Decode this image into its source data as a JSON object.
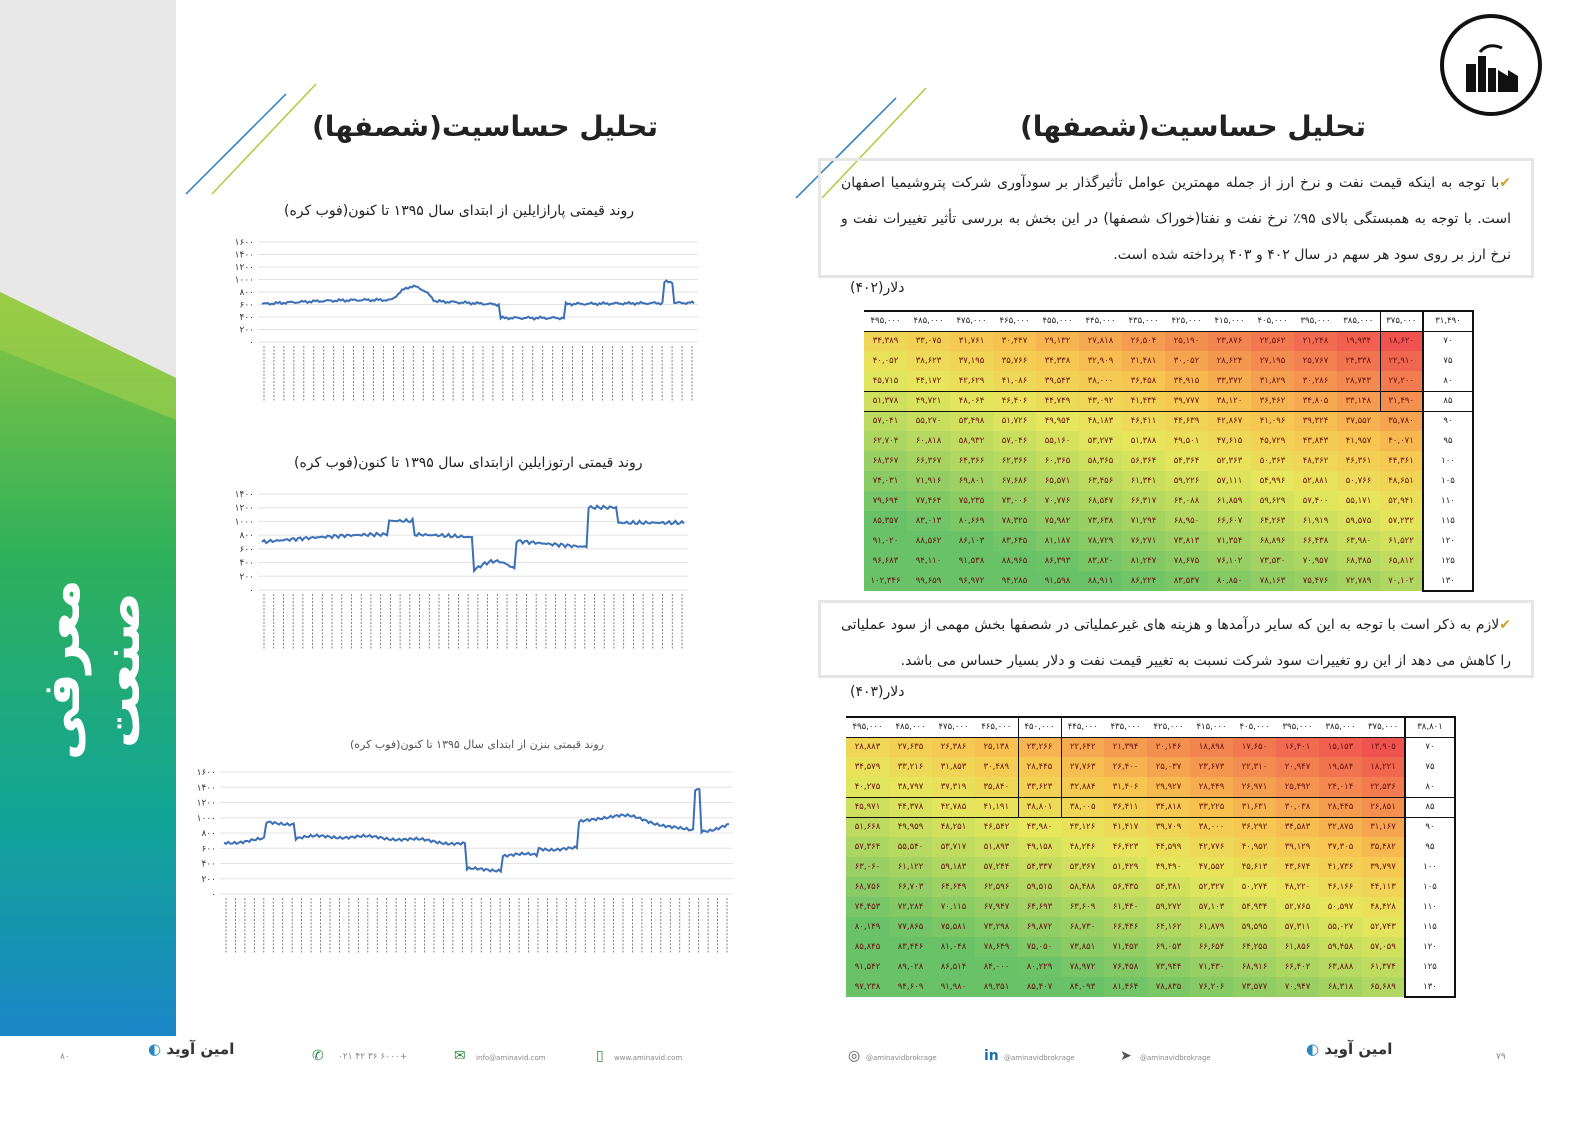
{
  "ribbon": {
    "title": "معرفی صنعت"
  },
  "left_page": {
    "heading": "تحلیل حساسیت(شصفها)",
    "charts": [
      {
        "title": "روند قیمتی پارازایلین از ابتدای سال ۱۳۹۵ تا کنون(فوب کره)",
        "yticks": [
          "۱۶۰۰",
          "۱۴۰۰",
          "۱۲۰۰",
          "۱۰۰۰",
          "۸۰۰",
          "۶۰۰",
          "۴۰۰",
          "۲۰۰",
          "۰"
        ]
      },
      {
        "title": "روند قیمتی ارتوزایلین ازابتدای سال ۱۳۹۵ تا کنون(فوب کره)",
        "yticks": [
          "۱۴۰۰",
          "۱۲۰۰",
          "۱۰۰۰",
          "۸۰۰",
          "۶۰۰",
          "۴۰۰",
          "۲۰۰",
          "۰"
        ]
      },
      {
        "title": "روند قیمتی بنزن از ابتدای سال ۱۳۹۵ تا کنون(فوب کره)",
        "yticks": [
          "۱۶۰۰",
          "۱۴۰۰",
          "۱۲۰۰",
          "۱۰۰۰",
          "۸۰۰",
          "۶۰۰",
          "۴۰۰",
          "۲۰۰",
          "۰"
        ]
      }
    ],
    "footer": {
      "phone": "۰۲۱ ۴۲ ۳۶ ۶۰۰۰+",
      "email": "info@aminavid.com",
      "web": "www.aminavid.com",
      "brand": "امین آوید",
      "page_number": "۸۰"
    }
  },
  "right_page": {
    "heading": "تحلیل حساسیت(شصفها)",
    "para1": "با توجه به اینکه قیمت نفت و نرخ ارز از جمله مهمترین عوامل تأثیرگذار بر سودآوری شرکت پتروشیمیا اصفهان است. با توجه به همبستگی بالای ۹۵٪ نرخ نفت و نفتا(خوراک شصفها) در این بخش به بررسی تأثیر تغییرات نفت و نرخ ارز بر روی سود هر سهم در سال ۴۰۲ و ۴۰۳ پرداخته شده است.",
    "para2": "لازم به ذکر است با توجه به این که سایر درآمدها و هزینه های غیرعملیاتی در شصفها بخش مهمی از سود عملیاتی را کاهش می دهد از این رو تغییرات سود شرکت نسبت به تغییر قیمت نفت و دلار بسیار حساس می باشد.",
    "table1_label": "دلار(۴۰۲)",
    "table2_label": "دلار(۴۰۳)",
    "footer": {
      "instagram": "@aminavidbrokrage",
      "linkedin": "@aminavidbrokrage",
      "telegram": "@aminavidbrokrage",
      "brand": "امین آوید",
      "page_number": "۷۹"
    }
  },
  "table1": {
    "corner": "۳۱,۴۹۰",
    "cols": [
      "۳۷۵,۰۰۰",
      "۳۸۵,۰۰۰",
      "۳۹۵,۰۰۰",
      "۴۰۵,۰۰۰",
      "۴۱۵,۰۰۰",
      "۴۲۵,۰۰۰",
      "۴۳۵,۰۰۰",
      "۴۴۵,۰۰۰",
      "۴۵۵,۰۰۰",
      "۴۶۵,۰۰۰",
      "۴۷۵,۰۰۰",
      "۴۸۵,۰۰۰",
      "۴۹۵,۰۰۰"
    ],
    "rows": [
      {
        "h": "۷۰",
        "v": [
          "۱۸,۶۲۰",
          "۱۹,۹۳۴",
          "۲۱,۲۴۸",
          "۲۲,۵۶۲",
          "۲۳,۸۷۶",
          "۲۵,۱۹۰",
          "۲۶,۵۰۴",
          "۲۷,۸۱۸",
          "۲۹,۱۳۲",
          "۳۰,۴۴۷",
          "۳۱,۷۶۱",
          "۳۳,۰۷۵",
          "۳۴,۳۸۹"
        ]
      },
      {
        "h": "۷۵",
        "v": [
          "۲۲,۹۱۰",
          "۲۴,۳۳۸",
          "۲۵,۷۶۷",
          "۲۷,۱۹۵",
          "۲۸,۶۲۴",
          "۳۰,۰۵۲",
          "۳۱,۴۸۱",
          "۳۲,۹۰۹",
          "۳۴,۳۳۸",
          "۳۵,۷۶۶",
          "۳۷,۱۹۵",
          "۳۸,۶۲۳",
          "۴۰,۰۵۲"
        ]
      },
      {
        "h": "۸۰",
        "v": [
          "۲۷,۲۰۰",
          "۲۸,۷۴۳",
          "۳۰,۲۸۶",
          "۳۱,۸۲۹",
          "۳۳,۳۷۲",
          "۳۴,۹۱۵",
          "۳۶,۴۵۸",
          "۳۸,۰۰۰",
          "۳۹,۵۴۳",
          "۴۱,۰۸۶",
          "۴۲,۶۲۹",
          "۴۴,۱۷۲",
          "۴۵,۷۱۵"
        ]
      },
      {
        "h": "۸۵",
        "v": [
          "۳۱,۴۹۰",
          "۳۳,۱۴۸",
          "۳۴,۸۰۵",
          "۳۶,۴۶۲",
          "۳۸,۱۲۰",
          "۳۹,۷۷۷",
          "۴۱,۴۳۴",
          "۴۳,۰۹۲",
          "۴۴,۷۴۹",
          "۴۶,۴۰۶",
          "۴۸,۰۶۴",
          "۴۹,۷۲۱",
          "۵۱,۳۷۸"
        ]
      },
      {
        "h": "۹۰",
        "v": [
          "۳۵,۷۸۰",
          "۳۷,۵۵۲",
          "۳۹,۳۲۴",
          "۴۱,۰۹۶",
          "۴۲,۸۶۷",
          "۴۴,۶۳۹",
          "۴۶,۴۱۱",
          "۴۸,۱۸۳",
          "۴۹,۹۵۴",
          "۵۱,۷۲۶",
          "۵۳,۴۹۸",
          "۵۵,۲۷۰",
          "۵۷,۰۴۱"
        ]
      },
      {
        "h": "۹۵",
        "v": [
          "۴۰,۰۷۱",
          "۴۱,۹۵۷",
          "۴۳,۸۴۳",
          "۴۵,۷۲۹",
          "۴۷,۶۱۵",
          "۴۹,۵۰۱",
          "۵۱,۳۸۸",
          "۵۳,۲۷۴",
          "۵۵,۱۶۰",
          "۵۷,۰۴۶",
          "۵۸,۹۳۲",
          "۶۰,۸۱۸",
          "۶۲,۷۰۴"
        ]
      },
      {
        "h": "۱۰۰",
        "v": [
          "۴۴,۳۶۱",
          "۴۶,۳۶۱",
          "۴۸,۳۶۲",
          "۵۰,۳۶۳",
          "۵۲,۳۶۳",
          "۵۴,۳۶۴",
          "۵۶,۳۶۴",
          "۵۸,۳۶۵",
          "۶۰,۳۶۵",
          "۶۲,۳۶۶",
          "۶۴,۳۶۶",
          "۶۶,۳۶۷",
          "۶۸,۳۶۷"
        ]
      },
      {
        "h": "۱۰۵",
        "v": [
          "۴۸,۶۵۱",
          "۵۰,۷۶۶",
          "۵۲,۸۸۱",
          "۵۴,۹۹۶",
          "۵۷,۱۱۱",
          "۵۹,۲۲۶",
          "۶۱,۳۴۱",
          "۶۳,۴۵۶",
          "۶۵,۵۷۱",
          "۶۷,۶۸۶",
          "۶۹,۸۰۱",
          "۷۱,۹۱۶",
          "۷۴,۰۳۱"
        ]
      },
      {
        "h": "۱۱۰",
        "v": [
          "۵۲,۹۴۱",
          "۵۵,۱۷۱",
          "۵۷,۴۰۰",
          "۵۹,۶۲۹",
          "۶۱,۸۵۹",
          "۶۴,۰۸۸",
          "۶۶,۳۱۷",
          "۶۸,۵۴۷",
          "۷۰,۷۷۶",
          "۷۳,۰۰۶",
          "۷۵,۲۳۵",
          "۷۷,۴۶۴",
          "۷۹,۶۹۴"
        ]
      },
      {
        "h": "۱۱۵",
        "v": [
          "۵۷,۲۳۲",
          "۵۹,۵۷۵",
          "۶۱,۹۱۹",
          "۶۴,۲۶۳",
          "۶۶,۶۰۷",
          "۶۸,۹۵۰",
          "۷۱,۲۹۴",
          "۷۳,۶۳۸",
          "۷۵,۹۸۲",
          "۷۸,۳۲۵",
          "۸۰,۶۶۹",
          "۸۳,۰۱۳",
          "۸۵,۳۵۷"
        ]
      },
      {
        "h": "۱۲۰",
        "v": [
          "۶۱,۵۲۲",
          "۶۳,۹۸۰",
          "۶۶,۴۳۸",
          "۶۸,۸۹۶",
          "۷۱,۳۵۴",
          "۷۳,۸۱۳",
          "۷۶,۲۷۱",
          "۷۸,۷۲۹",
          "۸۱,۱۸۷",
          "۸۳,۶۴۵",
          "۸۶,۱۰۳",
          "۸۸,۵۶۲",
          "۹۱,۰۲۰"
        ]
      },
      {
        "h": "۱۲۵",
        "v": [
          "۶۵,۸۱۲",
          "۶۸,۳۸۵",
          "۷۰,۹۵۷",
          "۷۳,۵۳۰",
          "۷۶,۱۰۲",
          "۷۸,۶۷۵",
          "۸۱,۲۴۷",
          "۸۳,۸۲۰",
          "۸۶,۳۹۳",
          "۸۸,۹۶۵",
          "۹۱,۵۳۸",
          "۹۴,۱۱۰",
          "۹۶,۶۸۳"
        ]
      },
      {
        "h": "۱۳۰",
        "v": [
          "۷۰,۱۰۲",
          "۷۲,۷۸۹",
          "۷۵,۴۷۶",
          "۷۸,۱۶۳",
          "۸۰,۸۵۰",
          "۸۳,۵۳۷",
          "۸۶,۲۲۴",
          "۸۸,۹۱۱",
          "۹۱,۵۹۸",
          "۹۴,۲۸۵",
          "۹۶,۹۷۲",
          "۹۹,۶۵۹",
          "۱۰۲,۳۴۶"
        ]
      }
    ]
  },
  "table2": {
    "corner": "۳۸,۸۰۱",
    "cols": [
      "۳۷۵,۰۰۰",
      "۳۸۵,۰۰۰",
      "۳۹۵,۰۰۰",
      "۴۰۵,۰۰۰",
      "۴۱۵,۰۰۰",
      "۴۲۵,۰۰۰",
      "۴۳۵,۰۰۰",
      "۴۴۵,۰۰۰",
      "۴۵۰,۰۰۰",
      "۴۶۵,۰۰۰",
      "۴۷۵,۰۰۰",
      "۴۸۵,۰۰۰",
      "۴۹۵,۰۰۰"
    ],
    "rows": [
      {
        "h": "۷۰",
        "v": [
          "۱۳,۹۰۵",
          "۱۵,۱۵۳",
          "۱۶,۴۰۱",
          "۱۷,۶۵۰",
          "۱۸,۸۹۸",
          "۲۰,۱۴۶",
          "۲۱,۳۹۴",
          "۲۲,۶۴۲",
          "۲۳,۲۶۶",
          "۲۵,۱۳۸",
          "۲۶,۳۸۶",
          "۲۷,۶۳۵",
          "۲۸,۸۸۳"
        ]
      },
      {
        "h": "۷۵",
        "v": [
          "۱۸,۲۲۱",
          "۱۹,۵۸۴",
          "۲۰,۹۴۷",
          "۲۲,۳۱۰",
          "۲۳,۶۷۳",
          "۲۵,۰۳۷",
          "۲۶,۴۰۰",
          "۲۷,۷۶۳",
          "۲۸,۴۴۵",
          "۳۰,۴۸۹",
          "۳۱,۸۵۳",
          "۳۳,۲۱۶",
          "۳۴,۵۷۹"
        ]
      },
      {
        "h": "۸۰",
        "v": [
          "۲۲,۵۳۶",
          "۲۴,۰۱۴",
          "۲۵,۴۹۲",
          "۲۶,۹۷۱",
          "۲۸,۴۴۹",
          "۲۹,۹۲۷",
          "۳۱,۴۰۶",
          "۳۲,۸۸۴",
          "۳۳,۶۲۳",
          "۳۵,۸۴۰",
          "۳۷,۳۱۹",
          "۳۸,۷۹۷",
          "۴۰,۲۷۵"
        ]
      },
      {
        "h": "۸۵",
        "v": [
          "۲۶,۸۵۱",
          "۲۸,۴۴۵",
          "۳۰,۰۳۸",
          "۳۱,۶۳۱",
          "۳۳,۲۲۵",
          "۳۴,۸۱۸",
          "۳۶,۴۱۱",
          "۳۸,۰۰۵",
          "۳۸,۸۰۱",
          "۴۱,۱۹۱",
          "۴۲,۷۸۵",
          "۴۴,۳۷۸",
          "۴۵,۹۷۱"
        ]
      },
      {
        "h": "۹۰",
        "v": [
          "۳۱,۱۶۷",
          "۳۲,۸۷۵",
          "۳۴,۵۸۳",
          "۳۶,۲۹۲",
          "۳۸,۰۰۰",
          "۳۹,۷۰۹",
          "۴۱,۴۱۷",
          "۴۳,۱۲۶",
          "۴۳,۹۸۰",
          "۴۶,۵۴۲",
          "۴۸,۲۵۱",
          "۴۹,۹۵۹",
          "۵۱,۶۶۸"
        ]
      },
      {
        "h": "۹۵",
        "v": [
          "۳۵,۴۸۲",
          "۳۷,۳۰۵",
          "۳۹,۱۲۹",
          "۴۰,۹۵۲",
          "۴۲,۷۷۶",
          "۴۴,۵۹۹",
          "۴۶,۴۲۳",
          "۴۸,۲۴۶",
          "۴۹,۱۵۸",
          "۵۱,۸۹۳",
          "۵۳,۷۱۷",
          "۵۵,۵۴۰",
          "۵۷,۳۶۴"
        ]
      },
      {
        "h": "۱۰۰",
        "v": [
          "۳۹,۷۹۷",
          "۴۱,۷۳۶",
          "۴۳,۶۷۴",
          "۴۵,۶۱۳",
          "۴۷,۵۵۲",
          "۴۹,۴۹۰",
          "۵۱,۴۲۹",
          "۵۳,۳۶۷",
          "۵۴,۳۳۷",
          "۵۷,۲۴۴",
          "۵۹,۱۸۳",
          "۶۱,۱۲۲",
          "۶۳,۰۶۰"
        ]
      },
      {
        "h": "۱۰۵",
        "v": [
          "۴۴,۱۱۳",
          "۴۶,۱۶۶",
          "۴۸,۲۲۰",
          "۵۰,۲۷۴",
          "۵۲,۳۲۷",
          "۵۴,۳۸۱",
          "۵۶,۴۳۵",
          "۵۸,۴۸۸",
          "۵۹,۵۱۵",
          "۶۲,۵۹۶",
          "۶۴,۶۴۹",
          "۶۶,۷۰۳",
          "۶۸,۷۵۶"
        ]
      },
      {
        "h": "۱۱۰",
        "v": [
          "۴۸,۴۲۸",
          "۵۰,۵۹۷",
          "۵۲,۷۶۵",
          "۵۴,۹۳۴",
          "۵۷,۱۰۳",
          "۵۹,۲۷۲",
          "۶۱,۴۴۰",
          "۶۳,۶۰۹",
          "۶۴,۶۹۳",
          "۶۷,۹۴۷",
          "۷۰,۱۱۵",
          "۷۲,۲۸۴",
          "۷۴,۴۵۳"
        ]
      },
      {
        "h": "۱۱۵",
        "v": [
          "۵۲,۷۴۳",
          "۵۵,۰۲۷",
          "۵۷,۳۱۱",
          "۵۹,۵۹۵",
          "۶۱,۸۷۹",
          "۶۴,۱۶۲",
          "۶۶,۴۴۶",
          "۶۸,۷۳۰",
          "۶۹,۸۷۲",
          "۷۳,۲۹۸",
          "۷۵,۵۸۱",
          "۷۷,۸۶۵",
          "۸۰,۱۴۹"
        ]
      },
      {
        "h": "۱۲۰",
        "v": [
          "۵۷,۰۵۹",
          "۵۹,۴۵۸",
          "۶۱,۸۵۶",
          "۶۴,۲۵۵",
          "۶۶,۶۵۴",
          "۶۹,۰۵۳",
          "۷۱,۴۵۲",
          "۷۳,۸۵۱",
          "۷۵,۰۵۰",
          "۷۸,۶۴۹",
          "۸۱,۰۴۸",
          "۸۳,۴۴۶",
          "۸۵,۸۴۵"
        ]
      },
      {
        "h": "۱۲۵",
        "v": [
          "۶۱,۳۷۴",
          "۶۳,۸۸۸",
          "۶۶,۴۰۲",
          "۶۸,۹۱۶",
          "۷۱,۴۳۰",
          "۷۳,۹۴۴",
          "۷۶,۴۵۸",
          "۷۸,۹۷۲",
          "۸۰,۲۲۹",
          "۸۴,۰۰۰",
          "۸۶,۵۱۴",
          "۸۹,۰۲۸",
          "۹۱,۵۴۲"
        ]
      },
      {
        "h": "۱۳۰",
        "v": [
          "۶۵,۶۸۹",
          "۶۸,۳۱۸",
          "۷۰,۹۴۷",
          "۷۳,۵۷۷",
          "۷۶,۲۰۶",
          "۷۸,۸۳۵",
          "۸۱,۴۶۴",
          "۸۴,۰۹۳",
          "۸۵,۴۰۷",
          "۸۹,۳۵۱",
          "۹۱,۹۸۰",
          "۹۴,۶۰۹",
          "۹۷,۲۳۸"
        ]
      }
    ]
  }
}
